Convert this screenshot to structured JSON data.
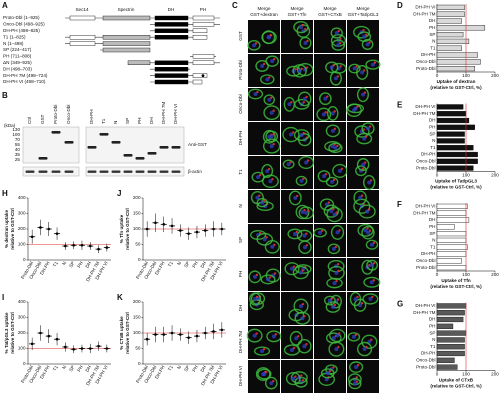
{
  "domain_map": {
    "label": "A",
    "domains": [
      "Sec14",
      "Spectrin",
      "DH",
      "PH"
    ],
    "constructs": [
      "Proto-Dbl (1–925)",
      "Onco-Dbl (498–925)",
      "DH-PH (498–825)",
      "T1 (1–825)",
      "N (1–498)",
      "SP (224–417)",
      "PH (711–808)",
      "ΔN (349–925)",
      "DH (498–703)",
      "DH-PH 7M (498–724)",
      "DH-PH VI (498–710)"
    ]
  },
  "blot": {
    "label": "B",
    "unit": "(kDa)",
    "lanes": [
      "Ctrl",
      "GST",
      "Proto-Dbl",
      "Onco-Dbl",
      "DH-PH",
      "T1",
      "N",
      "SP",
      "PH",
      "DH",
      "DH-PH 7M",
      "DH-PH VI"
    ],
    "markers": [
      130,
      100,
      70,
      55,
      40,
      35,
      25
    ],
    "antibodies": [
      "Anti-GST",
      "β-actin"
    ]
  },
  "microscopy": {
    "label": "C",
    "columns": [
      {
        "title": "Merge",
        "stain": "GST+dextran"
      },
      {
        "title": "Merge",
        "stain": "GST+Tfn"
      },
      {
        "title": "Merge",
        "stain": "GST+CTxB"
      },
      {
        "title": "Merge",
        "stain": "GST+Tat/pGL3"
      }
    ],
    "rows": [
      "GST",
      "Proto-Dbl",
      "Onco-Dbl",
      "DH-PH",
      "T1",
      "N",
      "SP",
      "PH",
      "DH",
      "DH-PH 7M",
      "DH-PH VI"
    ]
  },
  "chart_data": [
    {
      "type": "hbar",
      "panel": "D",
      "categories": [
        "DH-PH VI",
        "DH-PH 7M",
        "DH",
        "PH",
        "SP",
        "N",
        "T1",
        "DH-PH",
        "Onco-Dbl",
        "Proto-Dbl"
      ],
      "values": [
        95,
        95,
        85,
        165,
        90,
        110,
        85,
        140,
        150,
        130
      ],
      "color": "#d9d9d9",
      "xlim": [
        0,
        200
      ],
      "xticks": [
        0,
        100,
        200
      ],
      "reference": 100,
      "reference_color": "#e03030",
      "xlabel": [
        "Uptake of dextran",
        "(relative to GST-Ctrl, %)"
      ]
    },
    {
      "type": "hbar",
      "panel": "E",
      "categories": [
        "DH-PH VI",
        "DH-PH 7M",
        "DH",
        "PH",
        "SP",
        "N",
        "T1",
        "DH-PH",
        "Onco-Dbl",
        "Proto-Dbl"
      ],
      "values": [
        90,
        100,
        110,
        130,
        95,
        95,
        125,
        140,
        140,
        125
      ],
      "color": "#111111",
      "xlim": [
        0,
        200
      ],
      "xticks": [
        0,
        100,
        200
      ],
      "reference": 100,
      "reference_color": "#e03030",
      "xlabel": [
        "Uptake of Tat/pGL3",
        "(relative to GST-Ctrl, %)"
      ]
    },
    {
      "type": "hbar",
      "panel": "F",
      "categories": [
        "DH-PH VI",
        "DH-PH 7M",
        "DH",
        "PH",
        "SP",
        "N",
        "T1",
        "DH-PH",
        "Onco-Dbl",
        "Proto-Dbl"
      ],
      "values": [
        105,
        100,
        110,
        60,
        100,
        100,
        105,
        100,
        85,
        100
      ],
      "color": "#ffffff",
      "xlim": [
        0,
        200
      ],
      "xticks": [
        0,
        100,
        200
      ],
      "reference": 100,
      "reference_color": "#e03030",
      "xlabel": [
        "Uptake of Tfn",
        "(relative to GST-Ctrl, %)"
      ]
    },
    {
      "type": "hbar",
      "panel": "G",
      "categories": [
        "DH-PH VI",
        "DH-PH 7M",
        "DH",
        "PH",
        "SP",
        "N",
        "T1",
        "DH-PH",
        "Onco-Dbl",
        "Proto-Dbl"
      ],
      "values": [
        100,
        95,
        90,
        55,
        100,
        95,
        95,
        95,
        60,
        70
      ],
      "color": "#595959",
      "xlim": [
        0,
        200
      ],
      "xticks": [
        0,
        100,
        200
      ],
      "reference": 100,
      "reference_color": "#e03030",
      "xlabel": [
        "Uptake of CTxB",
        "(relative to GST-Ctrl, %)"
      ]
    },
    {
      "type": "dot",
      "panel": "H",
      "categories": [
        "Proto-Dbl",
        "Onco-Dbl",
        "DH-PH",
        "T1",
        "N",
        "SP",
        "PH",
        "DH",
        "DH-PH 7M",
        "DH-PH VI"
      ],
      "values": [
        150,
        210,
        200,
        170,
        90,
        95,
        95,
        90,
        70,
        80
      ],
      "errors": [
        45,
        50,
        45,
        40,
        25,
        25,
        30,
        25,
        25,
        25
      ],
      "ylim": [
        0,
        400
      ],
      "yticks": [
        0,
        100,
        200,
        300,
        400
      ],
      "reference": 100,
      "reference_color": "#e03030",
      "ylabel": [
        "% dextran uptake",
        "relative to GST-Ctrl"
      ]
    },
    {
      "type": "dot",
      "panel": "I",
      "categories": [
        "Proto-Dbl",
        "Onco-Dbl",
        "DH-PH",
        "T1",
        "N",
        "SP",
        "PH",
        "DH",
        "DH-PH 7M",
        "DH-PH VI"
      ],
      "values": [
        130,
        200,
        180,
        160,
        110,
        95,
        100,
        100,
        115,
        100
      ],
      "errors": [
        40,
        50,
        45,
        40,
        30,
        25,
        25,
        30,
        30,
        25
      ],
      "ylim": [
        0,
        400
      ],
      "yticks": [
        0,
        100,
        200,
        300,
        400
      ],
      "reference": 100,
      "reference_color": "#e03030",
      "ylabel": [
        "% Tat/pGL3 uptake",
        "relative to GST-Ctrl"
      ]
    },
    {
      "type": "dot",
      "panel": "J",
      "categories": [
        "Proto-Dbl",
        "Onco-Dbl",
        "DH-PH",
        "T1",
        "N",
        "SP",
        "PH",
        "DH",
        "DH-PH 7M",
        "DH-PH VI"
      ],
      "values": [
        100,
        120,
        115,
        110,
        95,
        85,
        90,
        95,
        100,
        100
      ],
      "errors": [
        25,
        30,
        25,
        25,
        20,
        20,
        20,
        20,
        25,
        20
      ],
      "ylim": [
        0,
        200
      ],
      "yticks": [
        0,
        50,
        100,
        150,
        200
      ],
      "reference": 100,
      "reference_color": "#e03030",
      "ylabel": [
        "% Tfn uptake",
        "relative to GST-Ctrl"
      ]
    },
    {
      "type": "dot",
      "panel": "K",
      "categories": [
        "Proto-Dbl",
        "Onco-Dbl",
        "DH-PH",
        "T1",
        "N",
        "SP",
        "PH",
        "DH",
        "DH-PH 7M",
        "DH-PH VI"
      ],
      "values": [
        80,
        95,
        95,
        100,
        95,
        85,
        90,
        100,
        105,
        110
      ],
      "errors": [
        20,
        25,
        25,
        25,
        20,
        20,
        20,
        20,
        25,
        25
      ],
      "ylim": [
        0,
        200
      ],
      "yticks": [
        0,
        50,
        100,
        150,
        200
      ],
      "reference": 100,
      "reference_color": "#e03030",
      "ylabel": [
        "% CTxB uptake",
        "relative to GST-Ctrl"
      ]
    }
  ]
}
